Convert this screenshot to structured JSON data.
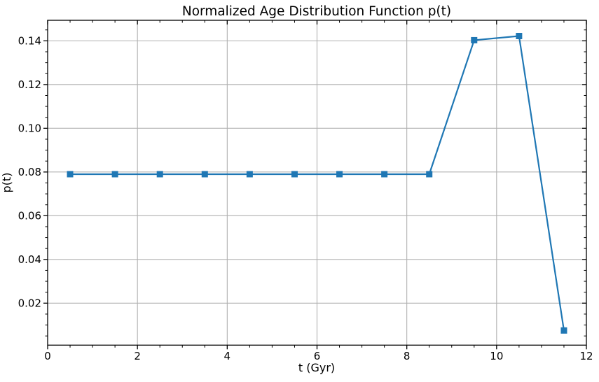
{
  "chart_data": {
    "type": "line",
    "title": "Normalized Age Distribution Function p(t)",
    "xlabel": "t (Gyr)",
    "ylabel": "p(t)",
    "x": [
      0.5,
      1.5,
      2.5,
      3.5,
      4.5,
      5.5,
      6.5,
      7.5,
      8.5,
      9.5,
      10.5,
      11.5
    ],
    "y": [
      0.079,
      0.079,
      0.079,
      0.079,
      0.079,
      0.079,
      0.079,
      0.079,
      0.079,
      0.1403,
      0.1422,
      0.0075
    ],
    "xlim": [
      0,
      12
    ],
    "ylim": [
      0.0008,
      0.1494
    ],
    "x_major_ticks": [
      0,
      2,
      4,
      6,
      8,
      10,
      12
    ],
    "x_tick_labels": [
      "0",
      "2",
      "4",
      "6",
      "8",
      "10",
      "12"
    ],
    "y_major_ticks": [
      0.02,
      0.04,
      0.06,
      0.08,
      0.1,
      0.12,
      0.14
    ],
    "y_tick_labels": [
      "0.02",
      "0.04",
      "0.06",
      "0.08",
      "0.10",
      "0.12",
      "0.14"
    ],
    "x_major_step": 2,
    "y_major_step": 0.02,
    "x_minor_step": 0.5,
    "y_minor_step": 0.005,
    "grid": true,
    "legend": null,
    "marker": "square",
    "line_color": "#1f77b4",
    "grid_color": "#b0b0b0",
    "axis_color": "#000000"
  }
}
